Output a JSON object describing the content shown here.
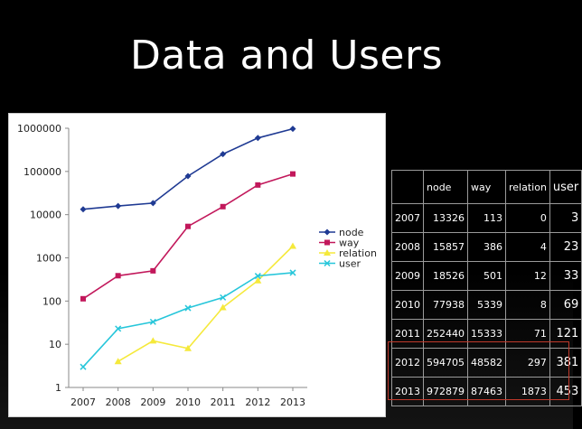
{
  "slide": {
    "title": "Data and Users"
  },
  "chart_data": {
    "type": "line",
    "y_scale": "log",
    "ylim": [
      1,
      1000000
    ],
    "y_ticks": [
      "1",
      "10",
      "100",
      "1000",
      "10000",
      "100000",
      "1000000"
    ],
    "categories": [
      "2007",
      "2008",
      "2009",
      "2010",
      "2011",
      "2012",
      "2013"
    ],
    "legend_position": "right",
    "grid": false,
    "series": [
      {
        "name": "node",
        "color": "#1f3a93",
        "marker": "diamond",
        "values": [
          13326,
          15857,
          18526,
          77938,
          252440,
          594705,
          972879
        ]
      },
      {
        "name": "way",
        "color": "#c2185b",
        "marker": "square",
        "values": [
          113,
          386,
          501,
          5339,
          15333,
          48582,
          87463
        ]
      },
      {
        "name": "relation",
        "color": "#f5e93b",
        "marker": "triangle",
        "values": [
          null,
          4,
          12,
          8,
          71,
          297,
          1873
        ]
      },
      {
        "name": "user",
        "color": "#26c6da",
        "marker": "x",
        "values": [
          3,
          23,
          33,
          69,
          121,
          381,
          453
        ]
      }
    ]
  },
  "table": {
    "headers": [
      "",
      "node",
      "way",
      "relation",
      "user"
    ],
    "rows": [
      [
        "2007",
        "13326",
        "113",
        "0",
        "3"
      ],
      [
        "2008",
        "15857",
        "386",
        "4",
        "23"
      ],
      [
        "2009",
        "18526",
        "501",
        "12",
        "33"
      ],
      [
        "2010",
        "77938",
        "5339",
        "8",
        "69"
      ],
      [
        "2011",
        "252440",
        "15333",
        "71",
        "121"
      ],
      [
        "2012",
        "594705",
        "48582",
        "297",
        "381"
      ],
      [
        "2013",
        "972879",
        "87463",
        "1873",
        "453"
      ]
    ],
    "highlight_color": "#c0392b"
  }
}
